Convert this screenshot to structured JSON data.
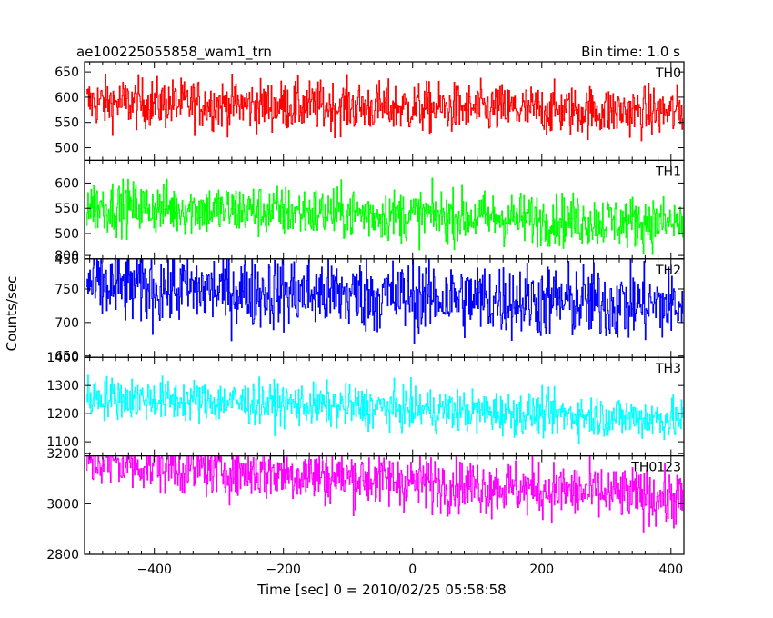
{
  "header": {
    "title": "ae100225055858_wam1_trn",
    "bin_time": "Bin time: 1.0 s"
  },
  "axes": {
    "xlabel": "Time [sec] 0 = 2010/02/25 05:58:58",
    "ylabel": "Counts/sec"
  },
  "chart_data": {
    "type": "line",
    "title": "ae100225055858_wam1_trn",
    "subtitle": "Bin time: 1.0 s",
    "xlabel": "Time [sec] 0 = 2010/02/25 05:58:58",
    "ylabel": "Counts/sec",
    "xlim": [
      -508,
      420
    ],
    "x_ticks": [
      -400,
      -200,
      0,
      200,
      400
    ],
    "x_tick_labels": [
      "−400",
      "−200",
      "0",
      "200",
      "400"
    ],
    "x_data_range": [
      -505,
      418
    ],
    "grid": false,
    "panels": [
      {
        "name": "TH0",
        "color": "#ff0000",
        "ylim": [
          475,
          670
        ],
        "y_ticks": [
          500,
          550,
          600,
          650
        ],
        "mean_start": 590,
        "mean_end": 570,
        "noise": 25
      },
      {
        "name": "TH1",
        "color": "#00ff00",
        "ylim": [
          450,
          645
        ],
        "y_ticks": [
          450,
          500,
          550,
          600
        ],
        "mean_start": 555,
        "mean_end": 520,
        "noise": 26
      },
      {
        "name": "TH2",
        "color": "#0000ff",
        "ylim": [
          648,
          795
        ],
        "y_ticks": [
          650,
          700,
          750,
          800
        ],
        "mean_start": 755,
        "mean_end": 725,
        "noise": 28
      },
      {
        "name": "TH3",
        "color": "#00ffff",
        "ylim": [
          1050,
          1400
        ],
        "y_ticks": [
          1100,
          1200,
          1300,
          1400
        ],
        "mean_start": 1260,
        "mean_end": 1180,
        "noise": 38
      },
      {
        "name": "TH0123",
        "color": "#ff00ff",
        "ylim": [
          2800,
          3190
        ],
        "y_ticks": [
          2800,
          3000,
          3200
        ],
        "mean_start": 3170,
        "mean_end": 3020,
        "noise": 55
      }
    ]
  }
}
